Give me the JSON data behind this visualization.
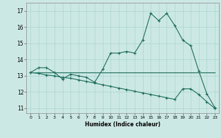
{
  "xlabel": "Humidex (Indice chaleur)",
  "bg_color": "#cce8e4",
  "grid_color": "#aad4d0",
  "line_color": "#1a6b5a",
  "xlim": [
    -0.5,
    23.5
  ],
  "ylim": [
    10.7,
    17.5
  ],
  "yticks": [
    11,
    12,
    13,
    14,
    15,
    16,
    17
  ],
  "xticks": [
    0,
    1,
    2,
    3,
    4,
    5,
    6,
    7,
    8,
    9,
    10,
    11,
    12,
    13,
    14,
    15,
    16,
    17,
    18,
    19,
    20,
    21,
    22,
    23
  ],
  "line1_x": [
    0,
    1,
    2,
    3,
    4,
    5,
    6,
    7,
    8,
    9,
    10,
    11,
    12,
    13,
    14,
    15,
    16,
    17,
    18,
    19,
    20,
    21,
    22,
    23
  ],
  "line1_y": [
    13.2,
    13.5,
    13.5,
    13.2,
    12.8,
    13.1,
    13.0,
    12.9,
    12.6,
    13.4,
    14.4,
    14.4,
    14.5,
    14.4,
    15.2,
    16.85,
    16.4,
    16.85,
    16.1,
    15.2,
    14.85,
    13.3,
    11.9,
    11.05
  ],
  "line2_x": [
    0,
    1,
    2,
    3,
    4,
    5,
    6,
    7,
    8,
    9,
    10,
    11,
    12,
    13,
    14,
    15,
    16,
    17,
    18,
    19,
    20,
    21,
    22,
    23
  ],
  "line2_y": [
    13.2,
    13.2,
    13.2,
    13.2,
    13.2,
    13.2,
    13.2,
    13.2,
    13.2,
    13.2,
    13.2,
    13.2,
    13.2,
    13.2,
    13.2,
    13.2,
    13.2,
    13.2,
    13.2,
    13.2,
    13.2,
    13.2,
    13.2,
    13.2
  ],
  "line3_x": [
    0,
    1,
    2,
    3,
    4,
    5,
    6,
    7,
    8,
    9,
    10,
    11,
    12,
    13,
    14,
    15,
    16,
    17,
    18,
    19,
    20,
    21,
    22,
    23
  ],
  "line3_y": [
    13.2,
    13.15,
    13.05,
    13.0,
    12.9,
    12.85,
    12.75,
    12.65,
    12.55,
    12.45,
    12.35,
    12.25,
    12.15,
    12.05,
    11.95,
    11.85,
    11.75,
    11.65,
    11.55,
    12.2,
    12.2,
    11.85,
    11.4,
    11.0
  ]
}
